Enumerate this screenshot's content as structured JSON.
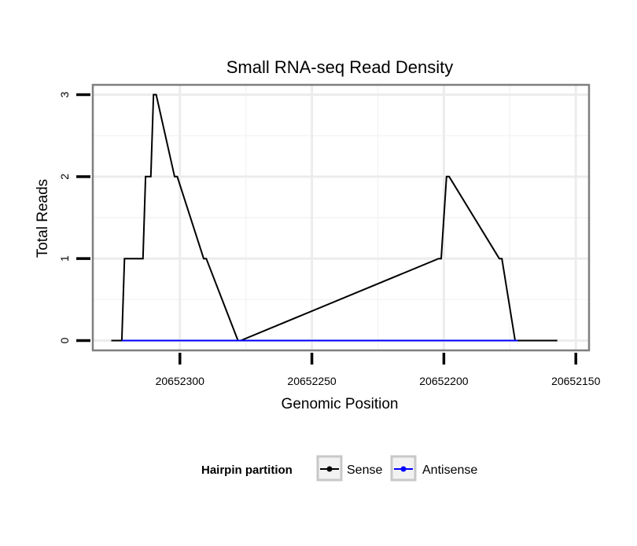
{
  "chart_data": {
    "type": "line",
    "title": "Small RNA-seq Read Density",
    "xlabel": "Genomic Position",
    "ylabel": "Total Reads",
    "x_reversed": true,
    "xlim": [
      20652333,
      20652145
    ],
    "ylim": [
      -0.12,
      3.12
    ],
    "xticks": [
      20652300,
      20652250,
      20652200,
      20652150
    ],
    "xtick_labels": [
      "20652300",
      "20652250",
      "20652200",
      "20652150"
    ],
    "yticks": [
      0,
      1,
      2,
      3
    ],
    "ytick_labels": [
      "0",
      "1",
      "2",
      "3"
    ],
    "grid": true,
    "series": [
      {
        "name": "Sense",
        "color": "#000000",
        "x": [
          20652326,
          20652322,
          20652321,
          20652314,
          20652313,
          20652311,
          20652310,
          20652309,
          20652302,
          20652301,
          20652291,
          20652290,
          20652278,
          20652277,
          20652202,
          20652201,
          20652199,
          20652198,
          20652179,
          20652178,
          20652173,
          20652172,
          20652157
        ],
        "y": [
          0,
          0,
          1,
          1,
          2,
          2,
          3,
          3,
          2,
          2,
          1,
          1,
          0,
          0,
          1,
          1,
          2,
          2,
          1,
          1,
          0,
          0,
          0
        ]
      },
      {
        "name": "Antisense",
        "color": "#0000ff",
        "x": [
          20652322,
          20652278,
          20652202,
          20652172
        ],
        "y": [
          0,
          0,
          0,
          0
        ]
      }
    ],
    "legend": {
      "title": "Hairpin partition",
      "position": "bottom",
      "entries": [
        "Sense",
        "Antisense"
      ]
    }
  }
}
